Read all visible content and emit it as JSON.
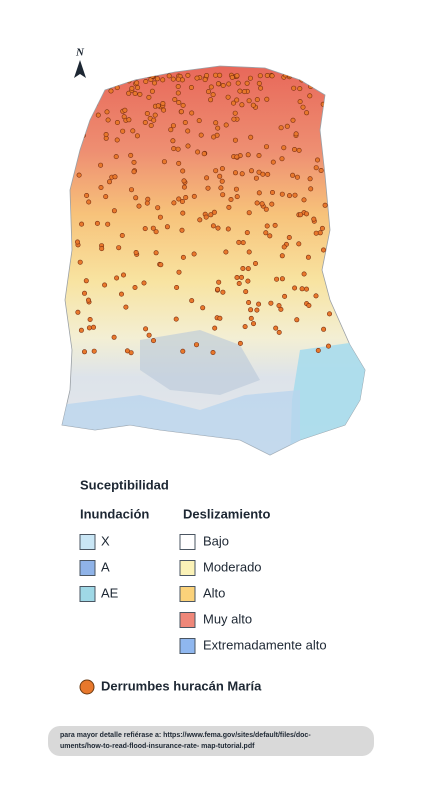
{
  "north_label": "N",
  "legend": {
    "title": "Suceptibilidad",
    "flood": {
      "title": "Inundación",
      "items": [
        {
          "label": "X",
          "color": "#c9e6f5"
        },
        {
          "label": "A",
          "color": "#8fb3e8"
        },
        {
          "label": "AE",
          "color": "#9fd8e6"
        }
      ]
    },
    "landslide": {
      "title": "Deslizamiento",
      "items": [
        {
          "label": "Bajo",
          "color": "#ffffff"
        },
        {
          "label": "Moderado",
          "color": "#fbf2b7"
        },
        {
          "label": "Alto",
          "color": "#fbd27a"
        },
        {
          "label": "Muy alto",
          "color": "#ef8779"
        },
        {
          "label": "Extremadamente alto",
          "color": "#8fb7ef"
        }
      ]
    },
    "points": {
      "label": "Derrumbes huracán María",
      "color": "#e8782c"
    }
  },
  "footnote": [
    "para mayor detalle refiérase a: https://www.fema.gov/sites/default/files/doc-",
    "uments/how-to-read-flood-insurance-rate- map-tutorial.pdf"
  ]
}
